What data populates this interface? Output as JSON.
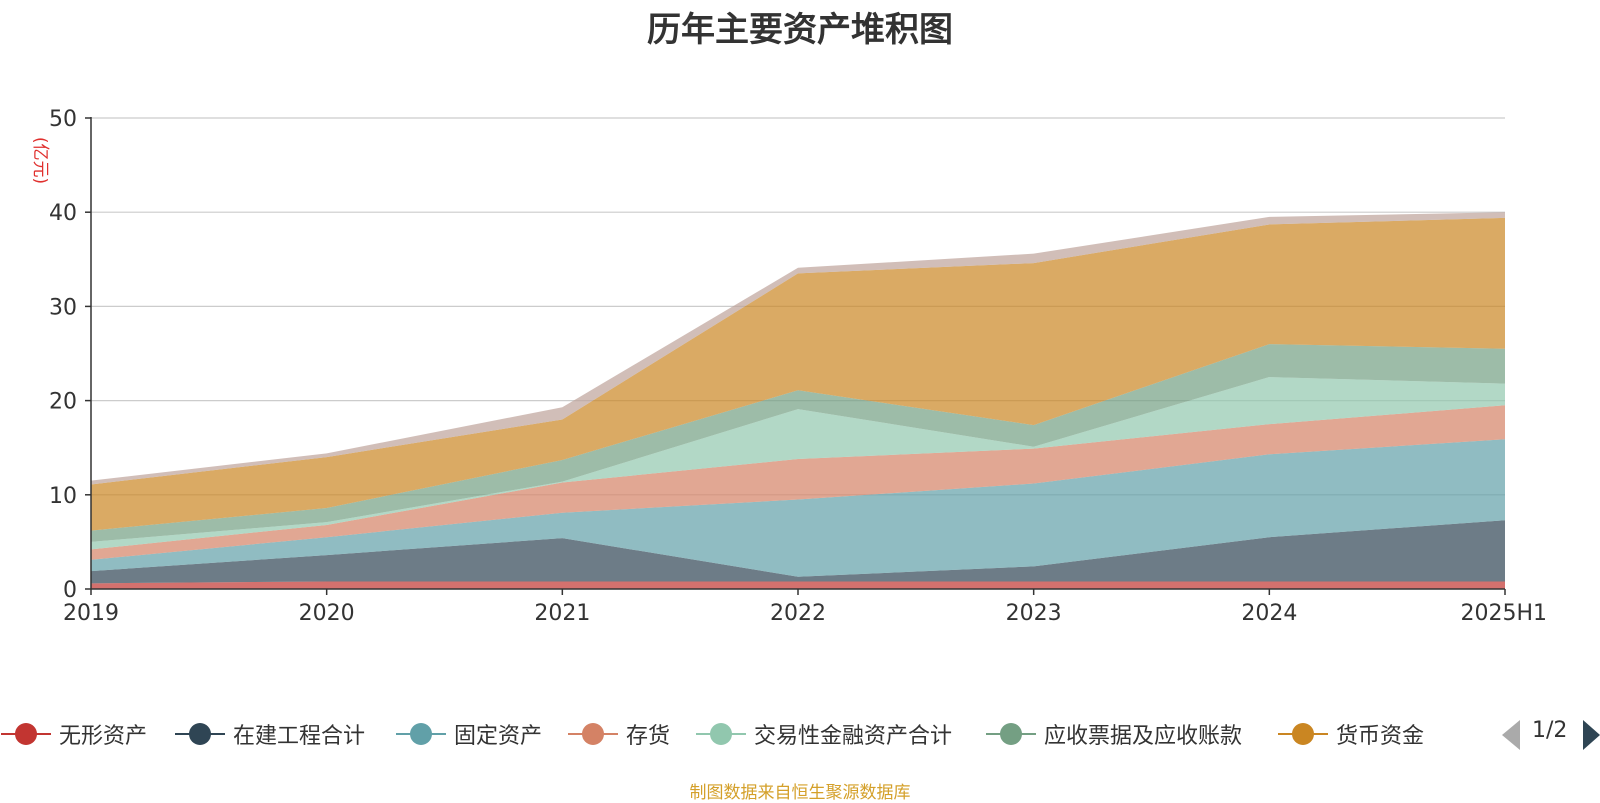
{
  "chart_data": {
    "type": "area",
    "stacked": true,
    "title": "历年主要资产堆积图",
    "unit": "(亿元)",
    "categories": [
      "2019",
      "2020",
      "2021",
      "2022",
      "2023",
      "2024",
      "2025H1"
    ],
    "ylim": [
      0,
      50
    ],
    "yticks": [
      0,
      10,
      20,
      30,
      40,
      50
    ],
    "grid": true,
    "legend_position": "bottom",
    "series": [
      {
        "name": "无形资产",
        "color": "#c23531",
        "values": [
          0.6,
          0.8,
          0.8,
          0.8,
          0.8,
          0.8,
          0.8
        ]
      },
      {
        "name": "在建工程合计",
        "color": "#2f4554",
        "values": [
          1.3,
          2.8,
          4.6,
          0.5,
          1.6,
          4.7,
          6.5
        ]
      },
      {
        "name": "固定资产",
        "color": "#61a0a8",
        "values": [
          1.2,
          1.9,
          2.7,
          8.2,
          8.8,
          8.8,
          8.6
        ]
      },
      {
        "name": "存货",
        "color": "#d48265",
        "values": [
          1.1,
          1.3,
          3.2,
          4.3,
          3.7,
          3.2,
          3.6
        ]
      },
      {
        "name": "交易性金融资产合计",
        "color": "#91c7ae",
        "values": [
          0.8,
          0.3,
          0.1,
          5.3,
          0.2,
          5.0,
          2.3
        ]
      },
      {
        "name": "应收票据及应收账款",
        "color": "#749f83",
        "values": [
          1.2,
          1.5,
          2.3,
          2.0,
          2.3,
          3.5,
          3.7
        ]
      },
      {
        "name": "货币资金",
        "color": "#ca8622",
        "values": [
          4.9,
          5.4,
          4.3,
          12.4,
          17.2,
          12.7,
          13.9
        ]
      },
      {
        "name": "",
        "color": "#bda29a",
        "values": [
          0.4,
          0.4,
          1.3,
          0.6,
          1.0,
          0.8,
          0.6
        ]
      }
    ]
  },
  "legend": {
    "items": [
      {
        "label": "无形资产",
        "color": "#c23531"
      },
      {
        "label": "在建工程合计",
        "color": "#2f4554"
      },
      {
        "label": "固定资产",
        "color": "#61a0a8"
      },
      {
        "label": "存货",
        "color": "#d48265"
      },
      {
        "label": "交易性金融资产合计",
        "color": "#91c7ae"
      },
      {
        "label": "应收票据及应收账款",
        "color": "#749f83"
      },
      {
        "label": "货币资金",
        "color": "#ca8622"
      }
    ],
    "page_text": "1/2"
  },
  "source_text": "制图数据来自恒生聚源数据库"
}
